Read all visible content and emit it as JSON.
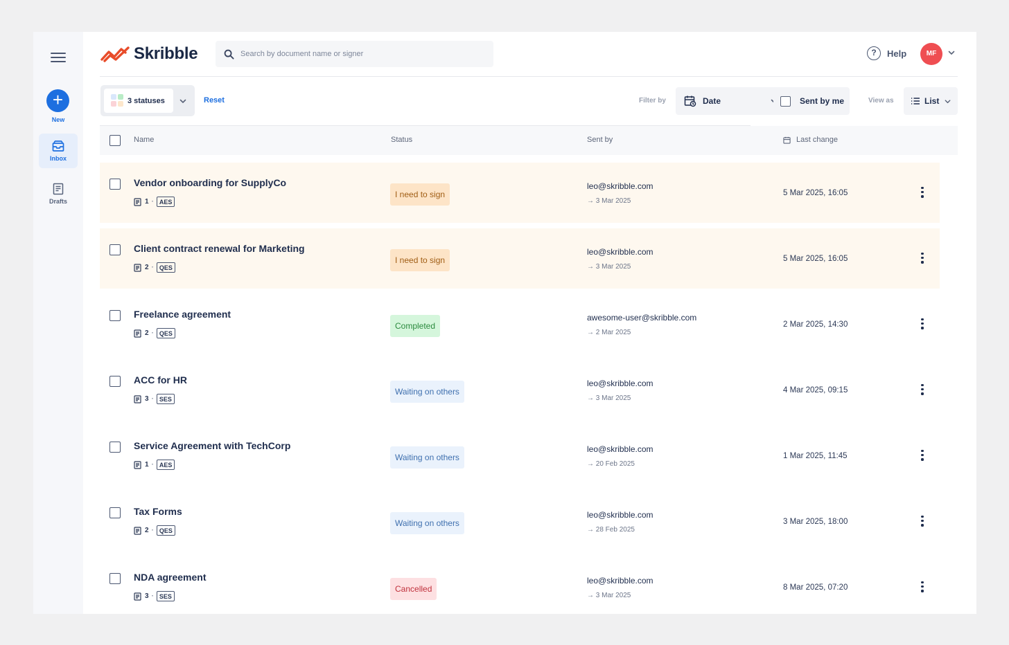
{
  "app": {
    "name": "Skribble"
  },
  "sidebar": {
    "new_label": "New",
    "items": [
      {
        "label": "Inbox",
        "icon": "inbox-icon",
        "active": true
      },
      {
        "label": "Drafts",
        "icon": "drafts-icon",
        "active": false
      }
    ]
  },
  "header": {
    "search_placeholder": "Search by document name or signer",
    "help_label": "Help",
    "help_symbol": "?",
    "avatar_initials": "MF"
  },
  "toolbar": {
    "status_filter_label": "3 statuses",
    "reset_label": "Reset",
    "filter_by_label": "Filter by",
    "date_label": "Date",
    "sent_by_me_label": "Sent by me",
    "view_as_label": "View as",
    "list_label": "List"
  },
  "table": {
    "columns": {
      "name": "Name",
      "status": "Status",
      "sent_by": "Sent by",
      "last_change": "Last change"
    },
    "rows": [
      {
        "title": "Vendor onboarding for SupplyCo",
        "docs": "1",
        "sig_type": "AES",
        "status": "I need to sign",
        "status_kind": "sign",
        "sender": "leo@skribble.com",
        "sent_date": "→ 3 Mar 2025",
        "last_change": "5 Mar 2025, 16:05"
      },
      {
        "title": "Client contract renewal for Marketing",
        "docs": "2",
        "sig_type": "QES",
        "status": "I need to sign",
        "status_kind": "sign",
        "sender": "leo@skribble.com",
        "sent_date": "→ 3 Mar 2025",
        "last_change": "5 Mar 2025, 16:05"
      },
      {
        "title": "Freelance agreement",
        "docs": "2",
        "sig_type": "QES",
        "status": "Completed",
        "status_kind": "done",
        "sender": "awesome-user@skribble.com",
        "sent_date": "→ 2 Mar 2025",
        "last_change": "2 Mar 2025, 14:30"
      },
      {
        "title": "ACC for HR",
        "docs": "3",
        "sig_type": "SES",
        "status": "Waiting on others",
        "status_kind": "wait",
        "sender": "leo@skribble.com",
        "sent_date": "→ 3 Mar 2025",
        "last_change": "4 Mar 2025, 09:15"
      },
      {
        "title": "Service Agreement with TechCorp",
        "docs": "1",
        "sig_type": "AES",
        "status": "Waiting on others",
        "status_kind": "wait",
        "sender": "leo@skribble.com",
        "sent_date": "→ 20 Feb 2025",
        "last_change": "1 Mar 2025, 11:45"
      },
      {
        "title": "Tax Forms",
        "docs": "2",
        "sig_type": "QES",
        "status": "Waiting on others",
        "status_kind": "wait",
        "sender": "leo@skribble.com",
        "sent_date": "→ 28 Feb 2025",
        "last_change": "3 Mar 2025, 18:00"
      },
      {
        "title": "NDA agreement",
        "docs": "3",
        "sig_type": "SES",
        "status": "Cancelled",
        "status_kind": "cancel",
        "sender": "leo@skribble.com",
        "sent_date": "→ 3 Mar 2025",
        "last_change": "8 Mar 2025, 07:20"
      }
    ]
  },
  "colors": {
    "primary": "#1d6fe0",
    "brand_orange": "#e84c2a",
    "avatar": "#ef4e52"
  }
}
